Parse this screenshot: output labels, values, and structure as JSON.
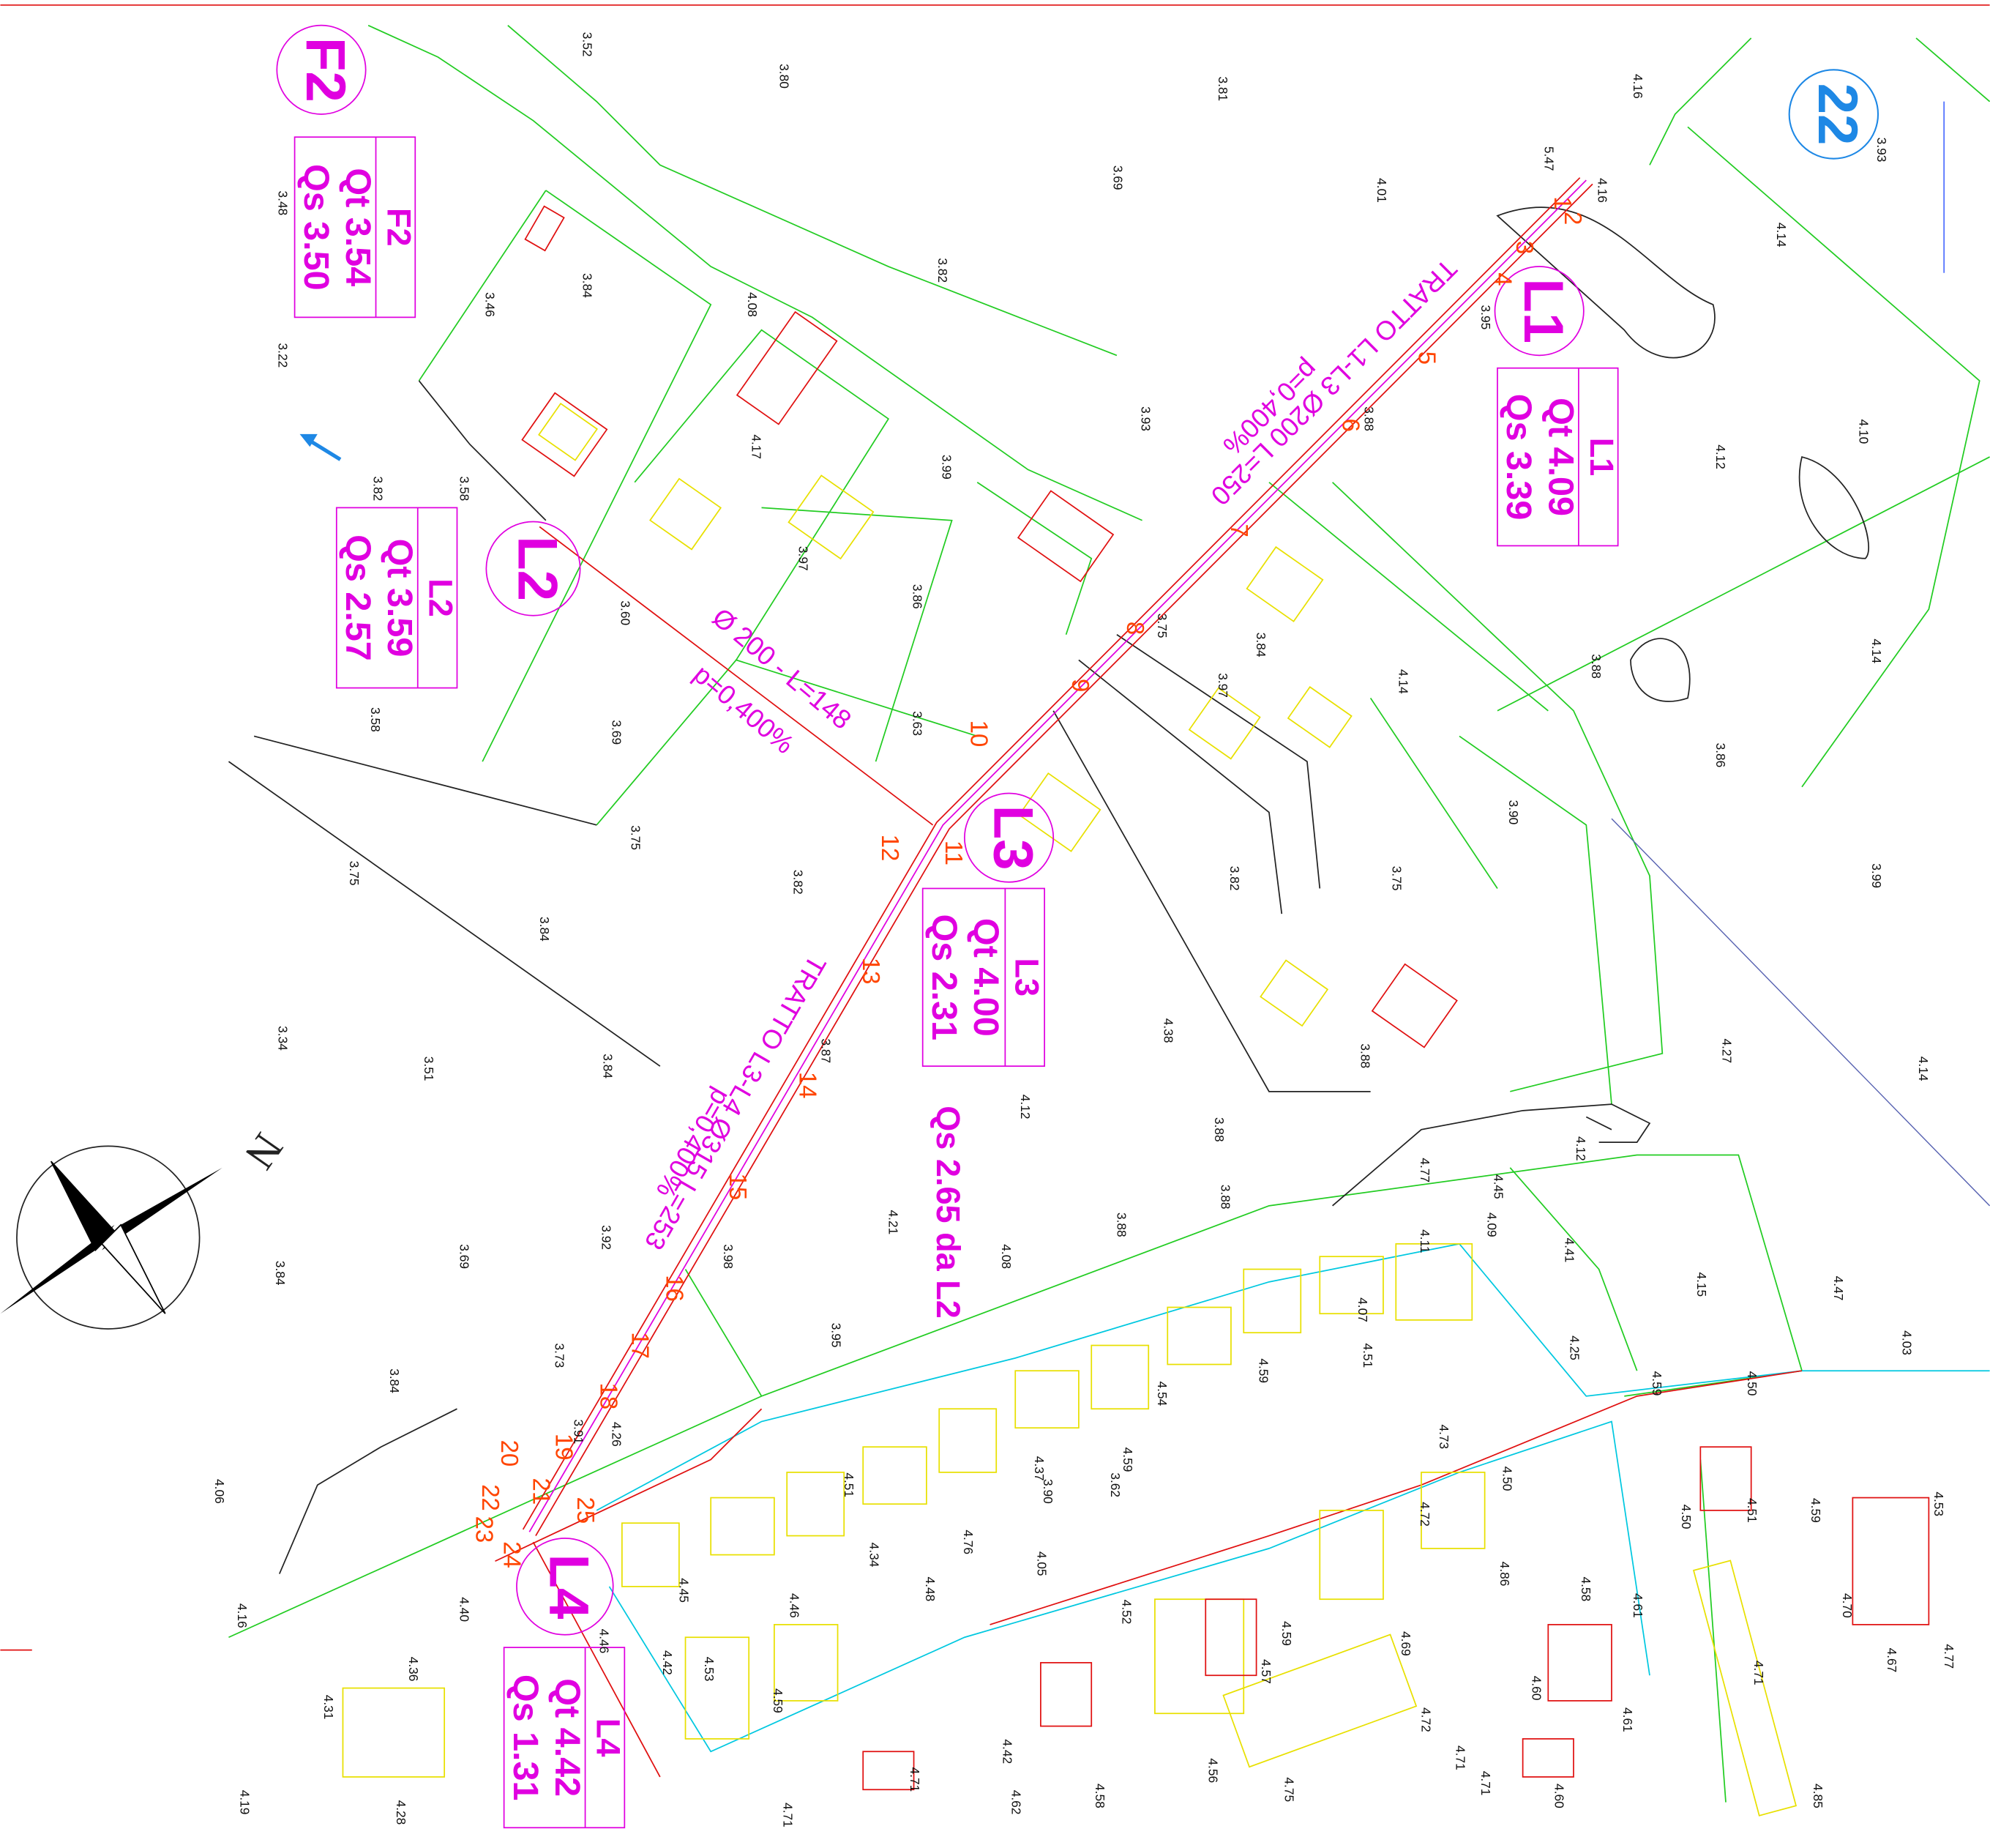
{
  "sheet_number": "22",
  "north_label": "N",
  "nodes": [
    {
      "id": "F2",
      "qt": "Qt 3.54",
      "qs": "Qs 3.50"
    },
    {
      "id": "L1",
      "qt": "Qt 4.09",
      "qs": "Qs 3.39"
    },
    {
      "id": "L2",
      "qt": "Qt 3.59",
      "qs": "Qs 2.57"
    },
    {
      "id": "L3",
      "qt": "Qt 4.00",
      "qs": "Qs 2.31"
    },
    {
      "id": "L4",
      "qt": "Qt 4.42",
      "qs": "Qs 1.31"
    }
  ],
  "pipes": [
    {
      "name": "TRATTO L1-L3 Ø200 L=250",
      "slope": "p=0,400%"
    },
    {
      "name": "Ø 200 - L=148",
      "slope": "p=0,400%"
    },
    {
      "name": "TRATTO L3-L4 Ø315 L=253",
      "slope": "p=0,400%"
    }
  ],
  "note": "Qs 2.65 da L2",
  "stations": [
    "1",
    "2",
    "3",
    "4",
    "5",
    "6",
    "7",
    "8",
    "9",
    "10",
    "11",
    "12",
    "13",
    "14",
    "15",
    "16",
    "17",
    "18",
    "19",
    "20",
    "21",
    "22",
    "23",
    "24",
    "25"
  ],
  "spot_heights": [
    "3.52",
    "3.80",
    "3.81",
    "4.16",
    "3.93",
    "5.47",
    "4.16",
    "3.69",
    "4.01",
    "3.48",
    "3.46",
    "3.84",
    "4.08",
    "3.82",
    "4.14",
    "3.95",
    "3.22",
    "3.93",
    "3.88",
    "4.17",
    "3.99",
    "4.12",
    "4.10",
    "3.82",
    "3.58",
    "3.97",
    "3.86",
    "3.60",
    "3.75",
    "3.84",
    "3.97",
    "4.14",
    "3.88",
    "4.14",
    "3.58",
    "3.69",
    "3.63",
    "3.86",
    "3.90",
    "3.75",
    "3.75",
    "3.82",
    "3.82",
    "3.75",
    "3.99",
    "3.84",
    "4.38",
    "3.88",
    "3.34",
    "3.51",
    "3.84",
    "3.87",
    "4.12",
    "4.27",
    "4.14",
    "3.88",
    "3.88",
    "3.88",
    "4.12",
    "4.77",
    "4.45",
    "4.09",
    "4.21",
    "4.08",
    "3.69",
    "3.92",
    "3.98",
    "3.84",
    "4.11",
    "4.41",
    "4.15",
    "4.47",
    "3.73",
    "3.95",
    "4.07",
    "4.51",
    "4.59",
    "4.25",
    "4.03",
    "4.59",
    "4.50",
    "4.54",
    "3.84",
    "3.91",
    "4.26",
    "4.73",
    "4.06",
    "4.51",
    "4.37",
    "3.90",
    "4.59",
    "3.62",
    "4.76",
    "4.50",
    "4.50",
    "4.51",
    "4.59",
    "4.53",
    "4.34",
    "4.72",
    "4.05",
    "4.48",
    "4.45",
    "4.46",
    "4.86",
    "4.58",
    "4.61",
    "4.70",
    "4.16",
    "4.40",
    "4.52",
    "4.46",
    "4.42",
    "4.53",
    "4.59",
    "4.69",
    "4.57",
    "4.67",
    "4.77",
    "4.71",
    "4.36",
    "4.31",
    "4.59",
    "4.60",
    "4.61",
    "4.72",
    "4.42",
    "4.71",
    "4.71",
    "4.62",
    "4.58",
    "4.56",
    "4.75",
    "4.71",
    "4.60",
    "4.85",
    "4.19",
    "4.28",
    "4.71"
  ]
}
